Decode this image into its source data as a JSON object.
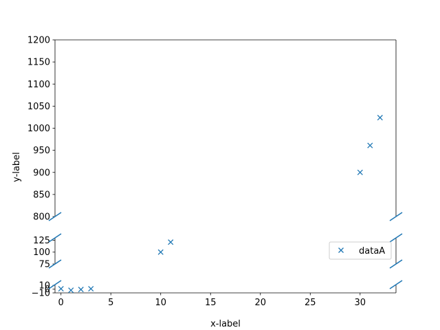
{
  "chart_data": {
    "type": "scatter",
    "title": "",
    "xlabel": "x-label",
    "ylabel": "y-label",
    "xlim": [
      -0.6,
      33.6
    ],
    "x_ticks": [
      0,
      5,
      10,
      15,
      20,
      25,
      30
    ],
    "x_tick_labels": [
      "0",
      "5",
      "10",
      "15",
      "20",
      "25",
      "30"
    ],
    "broken_axis": true,
    "panels": [
      {
        "ylim": [
          800,
          1200
        ],
        "ticks": [
          800,
          850,
          900,
          950,
          1000,
          1050,
          1100,
          1150,
          1200
        ],
        "tick_labels": [
          "800",
          "850",
          "900",
          "950",
          "1000",
          "1050",
          "1100",
          "1150",
          "1200"
        ]
      },
      {
        "ylim": [
          75,
          130
        ],
        "ticks": [
          75,
          100,
          125
        ],
        "tick_labels": [
          "75",
          "100",
          "125"
        ]
      },
      {
        "ylim": [
          -10,
          12
        ],
        "ticks": [
          -10,
          0,
          10
        ],
        "tick_labels": [
          "−10",
          "0",
          "10"
        ]
      }
    ],
    "grid": false,
    "legend_position": "center-right",
    "series": [
      {
        "name": "dataA",
        "marker": "x",
        "color": "#1f77b4",
        "x": [
          0,
          1,
          2,
          3,
          10,
          11,
          30,
          31,
          32
        ],
        "y": [
          1,
          -3,
          -1,
          1,
          100,
          121,
          900,
          961,
          1024
        ]
      }
    ]
  }
}
